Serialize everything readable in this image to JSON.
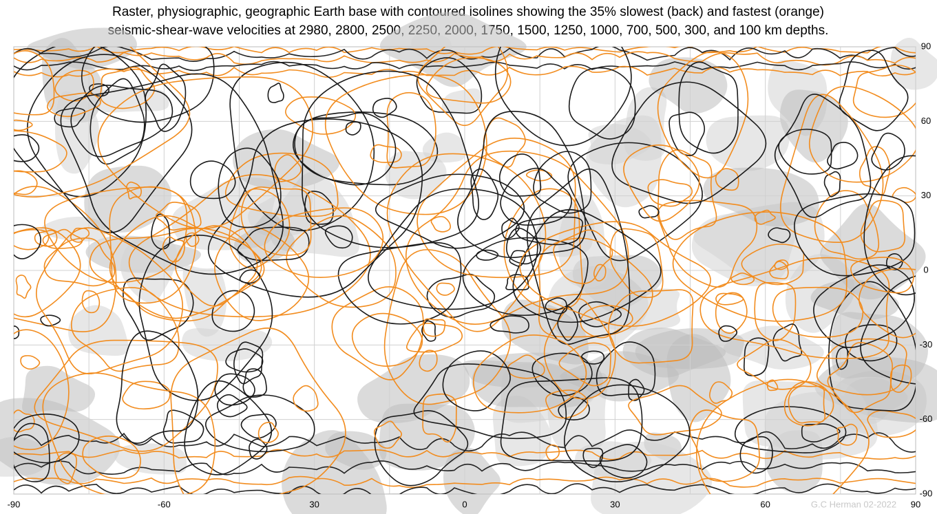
{
  "header": {
    "title_lines": [
      "Raster, physiographic, geographic Earth base with contoured isolines showing the 35% slowest (back) and fastest (orange)",
      "seismic-shear-wave velocities at 2980, 2800, 2500, 2250, 2000, 1750, 1500, 1250, 1000, 700, 500, 300, and 100 km depths."
    ]
  },
  "map": {
    "bottom_labels": [
      "-90",
      "-60",
      "30",
      "0",
      "30",
      "60",
      "90"
    ],
    "right_labels": [
      "90",
      "60",
      "30",
      "0",
      "-30",
      "-60",
      "-90"
    ]
  },
  "credit": "G.C Herman 02-2022"
}
